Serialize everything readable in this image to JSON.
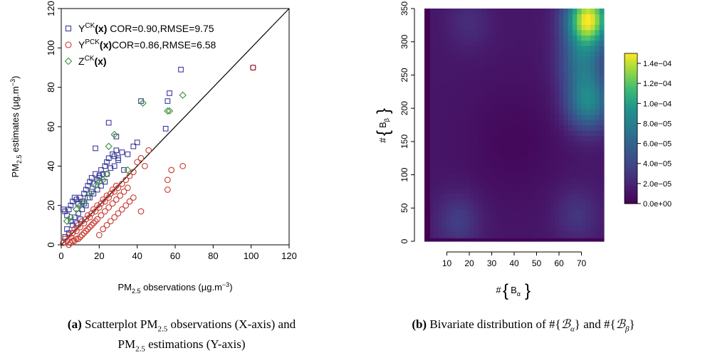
{
  "chart_data": [
    {
      "type": "scatter",
      "xlabel": "PM2.5 observations (µg.m−3)",
      "ylabel": "PM2.5 estimates (µg.m−3)",
      "xlim": [
        0,
        120
      ],
      "ylim": [
        0,
        120
      ],
      "xticks": [
        "0",
        "20",
        "40",
        "60",
        "80",
        "100",
        "120"
      ],
      "yticks": [
        "0",
        "20",
        "40",
        "60",
        "80",
        "100",
        "120"
      ],
      "reference_line": "y = x",
      "legend_position": "top-left",
      "series": [
        {
          "name": "YCK(x) COR=0.90,RMSE=9.75",
          "label_base": "Y",
          "label_sup": "CK",
          "label_arg": "(x)",
          "label_stats": " COR=0.90,RMSE=9.75",
          "marker": "square",
          "color": "#3b3b9a",
          "points": [
            [
              1,
              18
            ],
            [
              2,
              17
            ],
            [
              3,
              15
            ],
            [
              4,
              18
            ],
            [
              5,
              20
            ],
            [
              6,
              22
            ],
            [
              7,
              24
            ],
            [
              8,
              23
            ],
            [
              9,
              21
            ],
            [
              10,
              24
            ],
            [
              11,
              22
            ],
            [
              12,
              26
            ],
            [
              13,
              28
            ],
            [
              14,
              30
            ],
            [
              15,
              32
            ],
            [
              16,
              34
            ],
            [
              17,
              31
            ],
            [
              18,
              36
            ],
            [
              19,
              33
            ],
            [
              20,
              35
            ],
            [
              21,
              38
            ],
            [
              22,
              36
            ],
            [
              23,
              40
            ],
            [
              24,
              42
            ],
            [
              25,
              44
            ],
            [
              26,
              39
            ],
            [
              27,
              46
            ],
            [
              28,
              45
            ],
            [
              29,
              48
            ],
            [
              30,
              44
            ],
            [
              32,
              47
            ],
            [
              33,
              38
            ],
            [
              35,
              46
            ],
            [
              38,
              50
            ],
            [
              40,
              52
            ],
            [
              42,
              73
            ],
            [
              18,
              49
            ],
            [
              25,
              62
            ],
            [
              29,
              55
            ],
            [
              55,
              59
            ],
            [
              56,
              73
            ],
            [
              57,
              77
            ],
            [
              63,
              89
            ],
            [
              101,
              90
            ],
            [
              3,
              8
            ],
            [
              5,
              12
            ],
            [
              7,
              14
            ],
            [
              9,
              16
            ],
            [
              11,
              18
            ],
            [
              13,
              20
            ],
            [
              15,
              24
            ],
            [
              17,
              26
            ],
            [
              19,
              28
            ],
            [
              21,
              30
            ],
            [
              23,
              32
            ],
            [
              12,
              21
            ],
            [
              14,
              24
            ],
            [
              16,
              27
            ],
            [
              20,
              34
            ],
            [
              24,
              36
            ],
            [
              28,
              40
            ],
            [
              30,
              43
            ],
            [
              2,
              4
            ],
            [
              4,
              6
            ],
            [
              6,
              10
            ],
            [
              8,
              11
            ],
            [
              10,
              13
            ]
          ]
        },
        {
          "name": "YPCK(x)COR=0.86,RMSE=6.58",
          "label_base": "Y",
          "label_sup": "PCK",
          "label_arg": "(x)",
          "label_stats": "COR=0.86,RMSE=6.58",
          "marker": "circle",
          "color": "#c8372d",
          "points": [
            [
              1,
              1
            ],
            [
              2,
              3
            ],
            [
              3,
              2
            ],
            [
              4,
              5
            ],
            [
              5,
              4
            ],
            [
              6,
              6
            ],
            [
              7,
              8
            ],
            [
              8,
              7
            ],
            [
              9,
              10
            ],
            [
              10,
              9
            ],
            [
              11,
              12
            ],
            [
              12,
              11
            ],
            [
              13,
              13
            ],
            [
              14,
              15
            ],
            [
              15,
              14
            ],
            [
              16,
              16
            ],
            [
              17,
              18
            ],
            [
              18,
              17
            ],
            [
              19,
              20
            ],
            [
              20,
              19
            ],
            [
              21,
              21
            ],
            [
              22,
              23
            ],
            [
              23,
              22
            ],
            [
              24,
              25
            ],
            [
              25,
              24
            ],
            [
              26,
              26
            ],
            [
              27,
              28
            ],
            [
              28,
              27
            ],
            [
              29,
              30
            ],
            [
              30,
              29
            ],
            [
              32,
              31
            ],
            [
              34,
              33
            ],
            [
              36,
              35
            ],
            [
              38,
              37
            ],
            [
              40,
              42
            ],
            [
              42,
              44
            ],
            [
              44,
              40
            ],
            [
              46,
              48
            ],
            [
              20,
              5
            ],
            [
              22,
              8
            ],
            [
              24,
              10
            ],
            [
              26,
              12
            ],
            [
              28,
              14
            ],
            [
              30,
              16
            ],
            [
              32,
              18
            ],
            [
              34,
              20
            ],
            [
              36,
              22
            ],
            [
              38,
              24
            ],
            [
              42,
              17
            ],
            [
              56,
              28
            ],
            [
              56,
              33
            ],
            [
              58,
              38
            ],
            [
              64,
              40
            ],
            [
              101,
              90
            ],
            [
              6,
              2
            ],
            [
              8,
              3
            ],
            [
              10,
              4
            ],
            [
              12,
              6
            ],
            [
              14,
              8
            ],
            [
              16,
              10
            ],
            [
              18,
              12
            ],
            [
              4,
              0
            ],
            [
              5,
              1
            ],
            [
              7,
              2
            ],
            [
              9,
              3
            ],
            [
              11,
              5
            ],
            [
              13,
              7
            ],
            [
              15,
              9
            ],
            [
              17,
              11
            ],
            [
              19,
              13
            ],
            [
              21,
              15
            ],
            [
              23,
              17
            ],
            [
              25,
              19
            ],
            [
              27,
              21
            ],
            [
              29,
              23
            ],
            [
              31,
              25
            ],
            [
              33,
              27
            ],
            [
              35,
              29
            ]
          ]
        },
        {
          "name": "ZCK(x)",
          "label_base": "Z",
          "label_sup": "CK",
          "label_arg": "(x)",
          "label_stats": "",
          "marker": "diamond",
          "color": "#3a8f3a",
          "points": [
            [
              3,
              12
            ],
            [
              5,
              14
            ],
            [
              8,
              18
            ],
            [
              10,
              20
            ],
            [
              12,
              22
            ],
            [
              15,
              26
            ],
            [
              18,
              30
            ],
            [
              22,
              33
            ],
            [
              25,
              50
            ],
            [
              28,
              56
            ],
            [
              35,
              38
            ],
            [
              43,
              72
            ],
            [
              56,
              68
            ],
            [
              57,
              68
            ],
            [
              64,
              76
            ],
            [
              20,
              32
            ],
            [
              24,
              36
            ]
          ]
        }
      ],
      "caption_tag": "(a)",
      "caption": "Scatterplot PM2.5 observations (X-axis) and PM2.5 estimations (Y-axis)"
    },
    {
      "type": "heatmap",
      "xlabel": "#{Bα}",
      "ylabel": "#{Bβ}",
      "xlim": [
        0,
        80
      ],
      "ylim": [
        0,
        350
      ],
      "xticks": [
        "10",
        "20",
        "30",
        "40",
        "50",
        "60",
        "70"
      ],
      "yticks": [
        "0",
        "50",
        "100",
        "150",
        "200",
        "250",
        "300",
        "350"
      ],
      "colorbar": {
        "min": 0,
        "max": 0.00015,
        "labels": [
          "0.0e+00",
          "2.0e−05",
          "4.0e−05",
          "6.0e−05",
          "8.0e−05",
          "1.0e−04",
          "1.2e−04",
          "1.4e−04"
        ],
        "colormap": "viridis"
      },
      "peaks": [
        {
          "x": 73,
          "y": 335,
          "value": 0.000148
        },
        {
          "x": 73,
          "y": 210,
          "value": 8.5e-05
        },
        {
          "x": 70,
          "y": 270,
          "value": 6e-05
        },
        {
          "x": 15,
          "y": 30,
          "value": 3.5e-05
        },
        {
          "x": 68,
          "y": 40,
          "value": 3e-05
        },
        {
          "x": 20,
          "y": 330,
          "value": 2.5e-05
        }
      ],
      "caption_tag": "(b)",
      "caption": "Bivariate distribution of #{Bα} and #{Bβ}"
    }
  ]
}
